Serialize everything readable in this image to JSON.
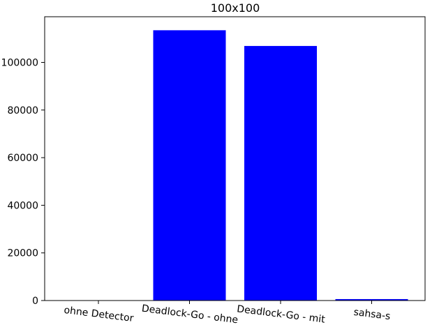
{
  "chart_data": {
    "type": "bar",
    "title": "100x100",
    "xlabel": "",
    "ylabel": "",
    "categories": [
      "ohne Detector",
      "Deadlock-Go - ohne",
      "Deadlock-Go - mit",
      "sahsa-s"
    ],
    "values": [
      0,
      113500,
      106900,
      600
    ],
    "ylim": [
      0,
      119175
    ],
    "yticks": [
      0,
      20000,
      40000,
      60000,
      80000,
      100000
    ],
    "ytick_labels": [
      "0",
      "20000",
      "40000",
      "60000",
      "80000",
      "100000"
    ],
    "bar_color": "#0000ff",
    "grid": false,
    "legend": "none"
  }
}
